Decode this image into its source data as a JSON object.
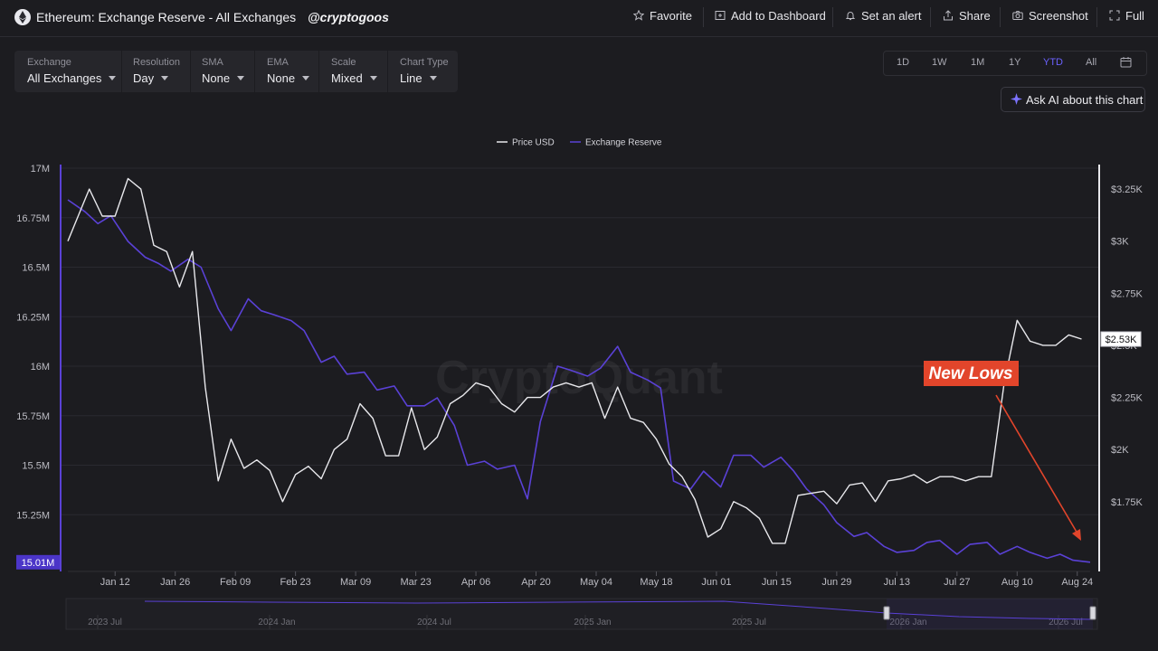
{
  "header": {
    "title": "Ethereum: Exchange Reserve - All Exchanges",
    "handle": "@cryptogoos",
    "actions": [
      {
        "label": "Favorite",
        "icon": "star-icon"
      },
      {
        "label": "Add to Dashboard",
        "icon": "dashboard-add-icon"
      },
      {
        "label": "Set an alert",
        "icon": "bell-icon"
      },
      {
        "label": "Share",
        "icon": "share-icon"
      },
      {
        "label": "Screenshot",
        "icon": "camera-icon"
      },
      {
        "label": "Full",
        "icon": "fullscreen-icon"
      }
    ]
  },
  "filters": [
    {
      "label": "Exchange",
      "value": "All Exchanges"
    },
    {
      "label": "Resolution",
      "value": "Day"
    },
    {
      "label": "SMA",
      "value": "None"
    },
    {
      "label": "EMA",
      "value": "None"
    },
    {
      "label": "Scale",
      "value": "Mixed"
    },
    {
      "label": "Chart Type",
      "value": "Line"
    }
  ],
  "ranges": {
    "items": [
      "1D",
      "1W",
      "1M",
      "1Y",
      "YTD",
      "All"
    ],
    "active": "YTD"
  },
  "ask_ai": "Ask AI about this chart",
  "watermark": "CryptoQuant",
  "annotation": {
    "text": "New Lows",
    "color": "#e2452b"
  },
  "colors": {
    "price": "#e8e8ec",
    "reserve": "#5a41d6",
    "accent": "#6b62ff"
  },
  "chart_data": {
    "type": "line",
    "legend": [
      "Price USD",
      "Exchange Reserve"
    ],
    "x_ticks": [
      "Jan 12",
      "Jan 26",
      "Feb 09",
      "Feb 23",
      "Mar 09",
      "Mar 23",
      "Apr 06",
      "Apr 20",
      "May 04",
      "May 18",
      "Jun 01",
      "Jun 15",
      "Jun 29",
      "Jul 13",
      "Jul 27",
      "Aug 10",
      "Aug 24"
    ],
    "y_left_ticks": [
      "17M",
      "16.75M",
      "16.5M",
      "16.25M",
      "16M",
      "15.75M",
      "15.5M",
      "15.25M"
    ],
    "y_left_range": [
      15.0,
      17.0
    ],
    "y_right_ticks": [
      "$3.25K",
      "$3K",
      "$2.75K",
      "$2.5K",
      "$2.25K",
      "$2K",
      "$1.75K"
    ],
    "y_right_range": [
      1.45,
      3.35
    ],
    "current_reserve_label": "15.01M",
    "current_price_label": "$2.53K",
    "x_range_days": [
      0,
      238
    ],
    "reserve_days": [
      0,
      4,
      7,
      10,
      14,
      18,
      21,
      24,
      28,
      31,
      35,
      38,
      42,
      45,
      48,
      52,
      55,
      59,
      62,
      65,
      69,
      72,
      76,
      79,
      83,
      86,
      90,
      93,
      97,
      100,
      104,
      107,
      110,
      114,
      117,
      121,
      124,
      128,
      131,
      135,
      138,
      141,
      145,
      148,
      152,
      155,
      159,
      162,
      166,
      169,
      172,
      176,
      179,
      183,
      186,
      190,
      193,
      197,
      200,
      203,
      207,
      210,
      214,
      217,
      221,
      224,
      228,
      231,
      234,
      238
    ],
    "reserve_values": [
      16.84,
      16.78,
      16.72,
      16.76,
      16.63,
      16.55,
      16.52,
      16.48,
      16.54,
      16.5,
      16.29,
      16.18,
      16.34,
      16.28,
      16.26,
      16.23,
      16.18,
      16.02,
      16.05,
      15.96,
      15.97,
      15.88,
      15.9,
      15.8,
      15.8,
      15.84,
      15.7,
      15.5,
      15.52,
      15.48,
      15.5,
      15.33,
      15.72,
      16.0,
      15.98,
      15.95,
      15.99,
      16.1,
      15.97,
      15.93,
      15.89,
      15.42,
      15.38,
      15.47,
      15.39,
      15.55,
      15.55,
      15.49,
      15.54,
      15.47,
      15.38,
      15.3,
      15.21,
      15.14,
      15.16,
      15.09,
      15.06,
      15.07,
      15.11,
      15.12,
      15.05,
      15.1,
      15.11,
      15.05,
      15.09,
      15.06,
      15.03,
      15.05,
      15.02,
      15.01
    ],
    "price_days": [
      0,
      3,
      5,
      8,
      11,
      14,
      17,
      20,
      23,
      26,
      29,
      32,
      35,
      38,
      41,
      44,
      47,
      50,
      53,
      56,
      59,
      62,
      65,
      68,
      71,
      74,
      77,
      80,
      83,
      86,
      89,
      92,
      95,
      98,
      101,
      104,
      107,
      110,
      113,
      116,
      119,
      122,
      125,
      128,
      131,
      134,
      137,
      140,
      143,
      146,
      149,
      152,
      155,
      158,
      161,
      164,
      167,
      170,
      173,
      176,
      179,
      182,
      185,
      188,
      191,
      194,
      197,
      200,
      203,
      206,
      209,
      212,
      215,
      218,
      221,
      224,
      227,
      230,
      233,
      236
    ],
    "price_values": [
      3.0,
      3.15,
      3.25,
      3.12,
      3.12,
      3.3,
      3.25,
      2.98,
      2.95,
      2.78,
      2.95,
      2.3,
      1.85,
      2.05,
      1.91,
      1.95,
      1.9,
      1.75,
      1.88,
      1.92,
      1.86,
      2.0,
      2.05,
      2.22,
      2.15,
      1.97,
      1.97,
      2.2,
      2.0,
      2.06,
      2.22,
      2.26,
      2.32,
      2.3,
      2.22,
      2.18,
      2.25,
      2.25,
      2.3,
      2.32,
      2.3,
      2.32,
      2.15,
      2.3,
      2.15,
      2.13,
      2.05,
      1.93,
      1.87,
      1.76,
      1.58,
      1.62,
      1.75,
      1.72,
      1.67,
      1.55,
      1.55,
      1.78,
      1.79,
      1.8,
      1.74,
      1.83,
      1.84,
      1.75,
      1.85,
      1.86,
      1.88,
      1.84,
      1.87,
      1.87,
      1.85,
      1.87,
      1.87,
      2.32,
      2.62,
      2.52,
      2.5,
      2.5,
      2.55,
      2.53
    ],
    "navigator": {
      "labels": [
        "2023 Jul",
        "2024 Jan",
        "2024 Jul",
        "2025 Jan",
        "2025 Jul",
        "2026 Jan",
        "2026 Jul"
      ]
    }
  }
}
